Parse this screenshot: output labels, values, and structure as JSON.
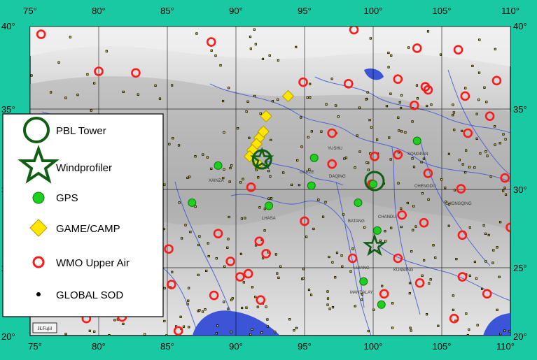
{
  "axes": {
    "x_ticks": [
      "75°",
      "80°",
      "85°",
      "90°",
      "95°",
      "100°",
      "105°",
      "110°"
    ],
    "y_ticks": [
      "40°",
      "35°",
      "30°",
      "25°",
      "20°"
    ]
  },
  "legend": {
    "items": [
      {
        "label": "PBL Tower",
        "symbol": "big-circle",
        "color": "#0f5e14"
      },
      {
        "label": "Windprofiler",
        "symbol": "star",
        "color": "#0f5e14"
      },
      {
        "label": "GPS",
        "symbol": "dot",
        "color": "#1fcf1f"
      },
      {
        "label": "GAME/CAMP",
        "symbol": "diamond",
        "color": "#ffe600"
      },
      {
        "label": "WMO Upper Air",
        "symbol": "ring",
        "color": "#ff1a1a"
      },
      {
        "label": "GLOBAL SOD",
        "symbol": "small-dot",
        "color": "#000000"
      }
    ]
  },
  "credit": "H.Fujii",
  "place_labels": [
    "XAINZA",
    "LHASA",
    "GARZE",
    "CHENGDU",
    "SONGPAN",
    "CHONGQING",
    "KUNMING",
    "MANDALAY",
    "LIJIANG",
    "BATANG",
    "CHANDU",
    "DAQING",
    "YUSHU"
  ],
  "stations": {
    "pbl_tower": [
      [
        91.9,
        31.4
      ],
      [
        100.1,
        30.0
      ]
    ],
    "windprofiler": [
      [
        100.1,
        25.8
      ],
      [
        91.9,
        31.4
      ]
    ],
    "gps": [
      [
        88.7,
        31.0
      ],
      [
        86.8,
        28.6
      ],
      [
        92.4,
        28.4
      ],
      [
        95.5,
        29.7
      ],
      [
        95.7,
        31.5
      ],
      [
        98.9,
        28.6
      ],
      [
        100.3,
        26.8
      ],
      [
        100.0,
        29.8
      ],
      [
        103.2,
        32.6
      ],
      [
        99.3,
        23.5
      ],
      [
        100.6,
        22.0
      ]
    ],
    "game_camp": [
      [
        93.8,
        35.5
      ],
      [
        92.2,
        34.2
      ],
      [
        91.7,
        32.8
      ],
      [
        91.5,
        32.4
      ],
      [
        91.2,
        32.0
      ],
      [
        91.0,
        31.6
      ],
      [
        91.6,
        31.1
      ],
      [
        92.0,
        33.2
      ]
    ],
    "wmo": [
      [
        75.8,
        39.5
      ],
      [
        80.0,
        37.1
      ],
      [
        82.7,
        37.0
      ],
      [
        88.2,
        39.0
      ],
      [
        94.9,
        36.4
      ],
      [
        98.2,
        36.3
      ],
      [
        98.6,
        39.8
      ],
      [
        101.8,
        36.6
      ],
      [
        103.8,
        36.1
      ],
      [
        106.2,
        38.5
      ],
      [
        109.0,
        36.5
      ],
      [
        103.2,
        38.6
      ],
      [
        106.7,
        35.5
      ],
      [
        103.0,
        34.9
      ],
      [
        108.5,
        34.2
      ],
      [
        106.9,
        33.1
      ],
      [
        104.0,
        35.9
      ],
      [
        97.0,
        33.1
      ],
      [
        97.0,
        31.1
      ],
      [
        100.1,
        31.6
      ],
      [
        101.8,
        31.7
      ],
      [
        104.0,
        30.5
      ],
      [
        106.4,
        29.5
      ],
      [
        109.6,
        30.2
      ],
      [
        103.7,
        27.3
      ],
      [
        102.1,
        27.8
      ],
      [
        99.9,
        29.8
      ],
      [
        91.1,
        29.6
      ],
      [
        95.0,
        27.4
      ],
      [
        88.7,
        26.6
      ],
      [
        89.6,
        24.8
      ],
      [
        90.3,
        23.8
      ],
      [
        90.9,
        24.0
      ],
      [
        91.8,
        22.3
      ],
      [
        88.4,
        22.6
      ],
      [
        85.3,
        23.3
      ],
      [
        85.1,
        25.6
      ],
      [
        81.7,
        21.2
      ],
      [
        79.1,
        21.1
      ],
      [
        85.8,
        20.3
      ],
      [
        92.2,
        25.3
      ],
      [
        91.7,
        26.1
      ],
      [
        98.5,
        25.0
      ],
      [
        101.8,
        25.0
      ],
      [
        103.4,
        23.4
      ],
      [
        106.5,
        23.8
      ],
      [
        108.3,
        22.7
      ],
      [
        105.9,
        21.1
      ],
      [
        100.8,
        22.7
      ],
      [
        106.5,
        26.5
      ],
      [
        110.0,
        27.0
      ]
    ]
  }
}
